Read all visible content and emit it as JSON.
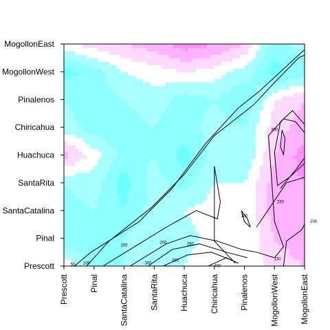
{
  "chart_data": {
    "type": "heatmap",
    "subtype": "filled-contour-with-contour-lines",
    "title": "",
    "xlabel": "",
    "ylabel": "",
    "x_categories": [
      "Prescott",
      "Pinal",
      "SantaCatalina",
      "SantaRita",
      "Huachuca",
      "Chiricahua",
      "Pinalenos",
      "MogollonWest",
      "MogollonEast"
    ],
    "y_categories": [
      "Prescott",
      "Pinal",
      "SantaCatalina",
      "SantaRita",
      "Huachuca",
      "Chiricahua",
      "Pinalenos",
      "MogollonWest",
      "MogollonEast"
    ],
    "x_tick_orientation": "vertical",
    "color_scale": {
      "low": "#00ffff",
      "mid": "#ffffff",
      "high": "#ff00ff"
    },
    "fill_matrix": [
      [
        0.55,
        0.3,
        0.35,
        0.4,
        0.45,
        0.55,
        0.45,
        0.6,
        0.65
      ],
      [
        0.25,
        0.3,
        0.35,
        0.45,
        0.4,
        0.5,
        0.45,
        0.65,
        0.7
      ],
      [
        0.3,
        0.35,
        0.25,
        0.4,
        0.45,
        0.5,
        0.45,
        0.7,
        0.75
      ],
      [
        0.35,
        0.4,
        0.2,
        0.4,
        0.3,
        0.45,
        0.45,
        0.7,
        0.75
      ],
      [
        0.7,
        0.5,
        0.3,
        0.35,
        0.2,
        0.4,
        0.35,
        0.65,
        0.8
      ],
      [
        0.4,
        0.3,
        0.3,
        0.35,
        0.3,
        0.4,
        0.35,
        0.6,
        0.7
      ],
      [
        0.35,
        0.3,
        0.35,
        0.4,
        0.3,
        0.35,
        0.25,
        0.55,
        0.65
      ],
      [
        0.2,
        0.3,
        0.45,
        0.5,
        0.55,
        0.5,
        0.4,
        0.2,
        0.3
      ],
      [
        0.5,
        0.6,
        0.65,
        0.7,
        0.8,
        0.75,
        0.65,
        0.3,
        0.4
      ]
    ],
    "contour_levels": [
      "50",
      "100",
      "150",
      "200",
      "250",
      "300",
      "350"
    ],
    "contour_labels": [
      {
        "text": "50",
        "x": 0.3,
        "y": 0.05
      },
      {
        "text": "100",
        "x": 0.75,
        "y": 0.1
      },
      {
        "text": "150",
        "x": 2.0,
        "y": 0.75
      },
      {
        "text": "200",
        "x": 3.3,
        "y": 0.85
      },
      {
        "text": "250",
        "x": 4.2,
        "y": 0.8
      },
      {
        "text": "300",
        "x": 2.8,
        "y": 0.1
      },
      {
        "text": "350",
        "x": 3.7,
        "y": 0.2
      },
      {
        "text": "400",
        "x": 5.1,
        "y": 0.0
      },
      {
        "text": "150",
        "x": 7.1,
        "y": 0.25
      },
      {
        "text": "200",
        "x": 8.3,
        "y": 1.6
      },
      {
        "text": "250",
        "x": 7.2,
        "y": 2.3
      },
      {
        "text": "100",
        "x": 6.0,
        "y": 1.8
      },
      {
        "text": "300",
        "x": 7.0,
        "y": 4.9
      }
    ],
    "contour_lines": [
      [
        [
          0.35,
          0
        ],
        [
          0.9,
          0.5
        ],
        [
          2.5,
          1.6
        ],
        [
          3.6,
          2.8
        ],
        [
          4.7,
          4.4
        ],
        [
          5.8,
          5.7
        ],
        [
          6.5,
          6.3
        ],
        [
          7.5,
          7.3
        ],
        [
          8,
          7.8
        ]
      ],
      [
        [
          0.75,
          0
        ],
        [
          1.5,
          0.9
        ],
        [
          2.9,
          2.1
        ],
        [
          4.0,
          3.3
        ],
        [
          5.0,
          4.7
        ],
        [
          6.3,
          5.8
        ],
        [
          6.9,
          6.5
        ],
        [
          7.8,
          7.5
        ],
        [
          8,
          7.6
        ]
      ],
      [
        [
          1.3,
          0
        ],
        [
          2.2,
          0.6
        ],
        [
          3.4,
          1.4
        ],
        [
          4.4,
          2.0
        ],
        [
          5.1,
          1.7
        ],
        [
          5.2,
          2.3
        ],
        [
          5.0,
          3.6
        ],
        [
          5.0,
          0.9
        ],
        [
          5.7,
          0.1
        ]
      ],
      [
        [
          2.2,
          0
        ],
        [
          3.4,
          0.8
        ],
        [
          4.2,
          1.1
        ],
        [
          5.1,
          0.9
        ],
        [
          5.9,
          0.6
        ],
        [
          6.4,
          0.5
        ],
        [
          7.0,
          0.3
        ],
        [
          7.3,
          0.7
        ],
        [
          7.0,
          1.6
        ],
        [
          6.9,
          3.2
        ],
        [
          6.8,
          4.7
        ],
        [
          7.3,
          5.3
        ],
        [
          7.7,
          5.2
        ],
        [
          8,
          4.8
        ]
      ],
      [
        [
          2.8,
          0
        ],
        [
          3.6,
          0.6
        ],
        [
          4.5,
          0.8
        ],
        [
          5.4,
          0.5
        ],
        [
          6.1,
          0.3
        ]
      ],
      [
        [
          3.3,
          0
        ],
        [
          4.1,
          0.4
        ],
        [
          4.9,
          0.5
        ],
        [
          5.6,
          0.2
        ]
      ],
      [
        [
          4.8,
          0
        ],
        [
          5.4,
          0.3
        ],
        [
          5.8,
          0.1
        ]
      ],
      [
        [
          7.3,
          0
        ],
        [
          7.4,
          0.9
        ],
        [
          7.9,
          1.3
        ],
        [
          8,
          1.5
        ]
      ],
      [
        [
          5.9,
          2.0
        ],
        [
          6.1,
          1.7
        ],
        [
          6.2,
          1.4
        ],
        [
          6.0,
          1.6
        ],
        [
          5.9,
          2.0
        ]
      ],
      [
        [
          6.4,
          1.4
        ],
        [
          6.9,
          2.2
        ],
        [
          7.4,
          3.0
        ],
        [
          8,
          3.2
        ]
      ],
      [
        [
          7.2,
          2.8
        ],
        [
          7.8,
          3.6
        ],
        [
          8,
          3.9
        ]
      ],
      [
        [
          7.0,
          4.1
        ],
        [
          7.1,
          2.9
        ],
        [
          7.5,
          3.2
        ],
        [
          8,
          3.7
        ],
        [
          8,
          5.1
        ],
        [
          7.6,
          5.6
        ],
        [
          7.2,
          5.2
        ],
        [
          7.0,
          4.1
        ]
      ],
      [
        [
          7.25,
          4.9
        ],
        [
          7.2,
          4.3
        ],
        [
          7.3,
          4.0
        ],
        [
          7.35,
          4.6
        ],
        [
          7.25,
          4.9
        ]
      ]
    ]
  }
}
